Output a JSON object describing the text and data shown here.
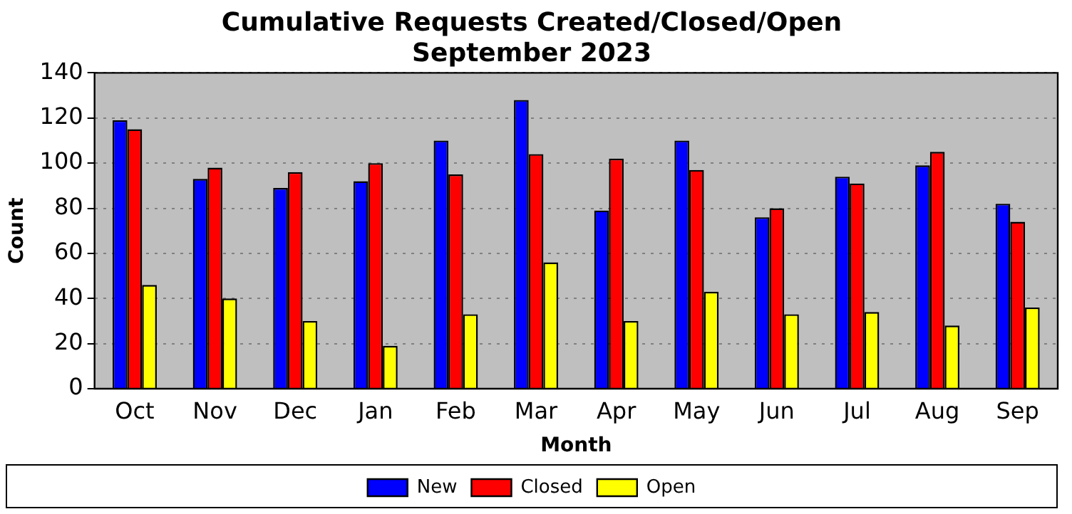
{
  "chart_data": {
    "type": "bar",
    "title": "Cumulative Requests Created/Closed/Open",
    "subtitle": "September 2023",
    "xlabel": "Month",
    "ylabel": "Count",
    "categories": [
      "Oct",
      "Nov",
      "Dec",
      "Jan",
      "Feb",
      "Mar",
      "Apr",
      "May",
      "Jun",
      "Jul",
      "Aug",
      "Sep"
    ],
    "series": [
      {
        "name": "New",
        "color": "#0000ff",
        "values": [
          119,
          93,
          89,
          92,
          110,
          128,
          79,
          110,
          76,
          94,
          99,
          82
        ]
      },
      {
        "name": "Closed",
        "color": "#ff0000",
        "values": [
          115,
          98,
          96,
          100,
          95,
          104,
          102,
          97,
          80,
          91,
          105,
          74
        ]
      },
      {
        "name": "Open",
        "color": "#ffff00",
        "values": [
          46,
          40,
          30,
          19,
          33,
          56,
          30,
          43,
          33,
          34,
          28,
          36
        ]
      }
    ],
    "ylim": [
      0,
      140
    ],
    "yticks": [
      0,
      20,
      40,
      60,
      80,
      100,
      120,
      140
    ],
    "grid": "y",
    "legend": "bottom"
  }
}
